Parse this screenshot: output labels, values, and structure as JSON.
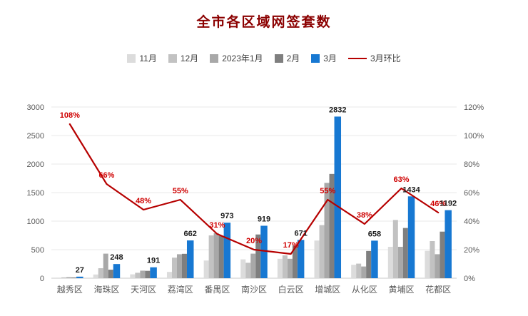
{
  "chart_data": {
    "type": "bar+line",
    "title": "全市各区域网签套数",
    "categories": [
      "越秀区",
      "海珠区",
      "天河区",
      "荔湾区",
      "番禺区",
      "南沙区",
      "白云区",
      "增城区",
      "从化区",
      "黄埔区",
      "花都区"
    ],
    "series": [
      {
        "name": "11月",
        "color": "#dcdcdc",
        "values": [
          10,
          65,
          68,
          110,
          310,
          330,
          340,
          660,
          235,
          550,
          480
        ]
      },
      {
        "name": "12月",
        "color": "#c2c2c2",
        "values": [
          15,
          175,
          95,
          360,
          750,
          270,
          400,
          930,
          255,
          1020,
          650
        ]
      },
      {
        "name": "2023年1月",
        "color": "#a8a8a8",
        "values": [
          18,
          430,
          132,
          420,
          790,
          430,
          340,
          1670,
          205,
          550,
          420
        ]
      },
      {
        "name": "2月",
        "color": "#7f7f7f",
        "values": [
          13,
          149,
          129,
          427,
          743,
          766,
          573,
          1827,
          477,
          880,
          816
        ]
      },
      {
        "name": "3月",
        "color": "#1778d2",
        "values": [
          27,
          248,
          191,
          662,
          973,
          919,
          671,
          2832,
          658,
          1434,
          1192
        ],
        "show_labels": true
      }
    ],
    "line": {
      "name": "3月环比",
      "color": "#b60000",
      "values": [
        108,
        66,
        48,
        55,
        31,
        20,
        17,
        55,
        38,
        63,
        46
      ],
      "label_suffix": "%"
    },
    "left_axis": {
      "min": 0,
      "max": 3000,
      "step": 500
    },
    "right_axis": {
      "min": 0,
      "max": 120,
      "step": 20,
      "suffix": "%"
    },
    "grid": true,
    "legend_position": "top"
  },
  "colors": {
    "title": "#8b0000",
    "axis_text": "#595959",
    "grid": "#e9e9e9",
    "baseline": "#c8c8c8",
    "value_label": "#1a1a1a",
    "pct_label": "#cf0000"
  }
}
